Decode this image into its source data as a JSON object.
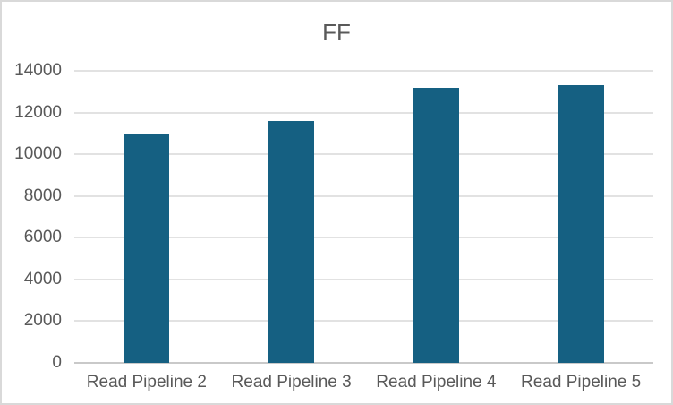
{
  "chart_data": {
    "type": "bar",
    "title": "FF",
    "categories": [
      "Read Pipeline 2",
      "Read Pipeline 3",
      "Read Pipeline 4",
      "Read Pipeline 5"
    ],
    "values": [
      11000,
      11600,
      13200,
      13300
    ],
    "xlabel": "",
    "ylabel": "",
    "ylim": [
      0,
      14000
    ],
    "ytick_step": 2000,
    "grid": true,
    "legend": false,
    "bar_color": "#156082",
    "text_color": "#595959",
    "gridline_color": "#E2E2E2",
    "axis_color": "#C9C9C9",
    "border_color": "#D9D9D9",
    "background_color": "#FFFFFF"
  }
}
